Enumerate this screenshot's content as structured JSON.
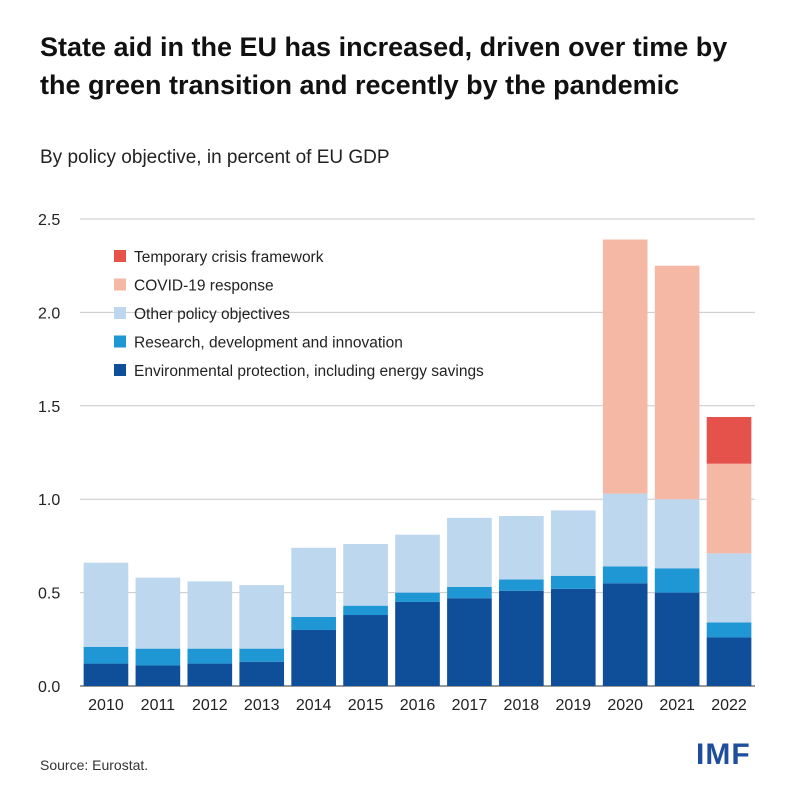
{
  "title": "State aid in the EU has increased, driven over time by the green transition and recently by the pandemic",
  "subtitle": "By policy objective, in percent of EU GDP",
  "source": "Source: Eurostat.",
  "logo": "IMF",
  "chart_data": {
    "type": "bar",
    "stacked": true,
    "categories": [
      "2010",
      "2011",
      "2012",
      "2013",
      "2014",
      "2015",
      "2016",
      "2017",
      "2018",
      "2019",
      "2020",
      "2021",
      "2022"
    ],
    "ylim": [
      0,
      2.5
    ],
    "yticks": [
      "0.0",
      "0.5",
      "1.0",
      "1.5",
      "2.0",
      "2.5"
    ],
    "grid": true,
    "legend_position": "top-left",
    "series": [
      {
        "name": "Environmental protection, including energy savings",
        "color": "#0f4f9a",
        "values": [
          0.12,
          0.11,
          0.12,
          0.13,
          0.3,
          0.38,
          0.45,
          0.47,
          0.51,
          0.52,
          0.55,
          0.5,
          0.26
        ]
      },
      {
        "name": "Research, development and innovation",
        "color": "#1f97d4",
        "values": [
          0.09,
          0.09,
          0.08,
          0.07,
          0.07,
          0.05,
          0.05,
          0.06,
          0.06,
          0.07,
          0.09,
          0.13,
          0.08
        ]
      },
      {
        "name": "Other policy objectives",
        "color": "#bcd7ee",
        "values": [
          0.45,
          0.38,
          0.36,
          0.34,
          0.37,
          0.33,
          0.31,
          0.37,
          0.34,
          0.35,
          0.39,
          0.37,
          0.37
        ]
      },
      {
        "name": "COVID-19 response",
        "color": "#f5b8a5",
        "values": [
          0,
          0,
          0,
          0,
          0,
          0,
          0,
          0,
          0,
          0,
          1.36,
          1.25,
          0.48
        ]
      },
      {
        "name": "Temporary crisis framework",
        "color": "#e5514b",
        "values": [
          0,
          0,
          0,
          0,
          0,
          0,
          0,
          0,
          0,
          0,
          0,
          0,
          0.25
        ]
      }
    ]
  }
}
